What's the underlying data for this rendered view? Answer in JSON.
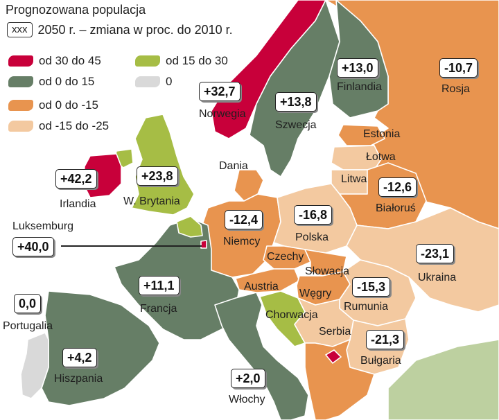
{
  "legend": {
    "title": "Prognozowana populacja",
    "sample_box": "xxx",
    "subtitle": "2050 r. – zmiana w proc. do 2010 r.",
    "items": [
      {
        "label": "od 30 do 45",
        "color": "#c8003a"
      },
      {
        "label": "od 15 do 30",
        "color": "#a6bd45"
      },
      {
        "label": "od 0 do 15",
        "color": "#667e66"
      },
      {
        "label": "0",
        "color": "#d9d9d9"
      },
      {
        "label": "od 0 do -15",
        "color": "#e8944f"
      },
      {
        "label": "od -15 do -25",
        "color": "#f3c9a0"
      }
    ]
  },
  "countries": [
    {
      "name": "Norwegia",
      "value": "+32,7"
    },
    {
      "name": "Szwecja",
      "value": "+13,8"
    },
    {
      "name": "Finlandia",
      "value": "+13,0"
    },
    {
      "name": "Rosja",
      "value": "-10,7"
    },
    {
      "name": "Estonia",
      "value": ""
    },
    {
      "name": "Łotwa",
      "value": ""
    },
    {
      "name": "Litwa",
      "value": ""
    },
    {
      "name": "Dania",
      "value": ""
    },
    {
      "name": "Irlandia",
      "value": "+42,2"
    },
    {
      "name": "W. Brytania",
      "value": "+23,8"
    },
    {
      "name": "Białoruś",
      "value": "-12,6"
    },
    {
      "name": "Niemcy",
      "value": "-12,4"
    },
    {
      "name": "Polska",
      "value": "-16,8"
    },
    {
      "name": "Luksemburg",
      "value": "+40,0"
    },
    {
      "name": "Czechy",
      "value": ""
    },
    {
      "name": "Słowacja",
      "value": ""
    },
    {
      "name": "Ukraina",
      "value": "-23,1"
    },
    {
      "name": "Francja",
      "value": "+11,1"
    },
    {
      "name": "Austria",
      "value": ""
    },
    {
      "name": "Węgry",
      "value": ""
    },
    {
      "name": "Rumunia",
      "value": "-15,3"
    },
    {
      "name": "Portugalia",
      "value": "0,0"
    },
    {
      "name": "Chorwacja",
      "value": ""
    },
    {
      "name": "Serbia",
      "value": ""
    },
    {
      "name": "Bułgaria",
      "value": "-21,3"
    },
    {
      "name": "Hiszpania",
      "value": "+4,2"
    },
    {
      "name": "Włochy",
      "value": "+2,0"
    }
  ]
}
